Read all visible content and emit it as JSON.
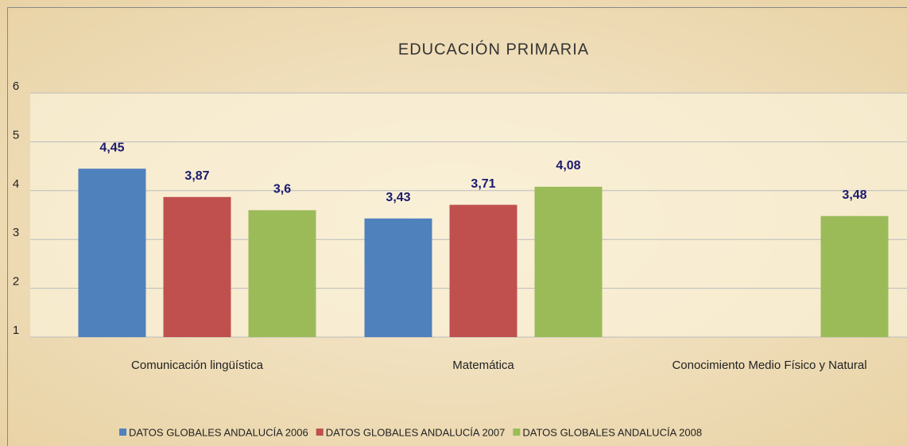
{
  "chart_data": {
    "type": "bar",
    "title": "EDUCACIÓN PRIMARIA",
    "categories": [
      "Comunicación lingüística",
      "Matemática",
      "Conocimiento Medio Físico y Natural"
    ],
    "series": [
      {
        "name": "DATOS GLOBALES ANDALUCÍA 2006",
        "color": "#4f81bd",
        "values": [
          4.45,
          3.43,
          null
        ],
        "value_labels": [
          "4,45",
          "3,43",
          null
        ]
      },
      {
        "name": "DATOS GLOBALES ANDALUCÍA 2007",
        "color": "#c0504d",
        "values": [
          3.87,
          3.71,
          null
        ],
        "value_labels": [
          "3,87",
          "3,71",
          null
        ]
      },
      {
        "name": "DATOS GLOBALES ANDALUCÍA 2008",
        "color": "#9bbb59",
        "values": [
          3.6,
          4.08,
          3.48
        ],
        "value_labels": [
          "3,6",
          "4,08",
          "3,48"
        ]
      }
    ],
    "ylim": [
      1,
      6
    ],
    "yticks": [
      1,
      2,
      3,
      4,
      5,
      6
    ],
    "grid": true,
    "legend": "bottom"
  }
}
